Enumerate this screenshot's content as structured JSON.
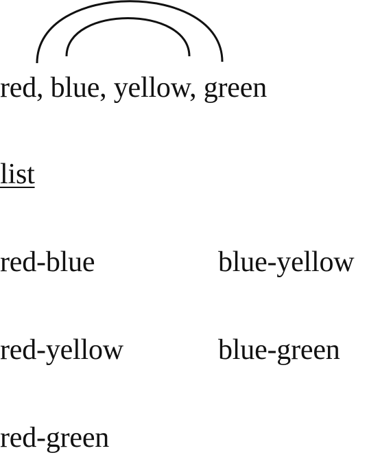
{
  "colors_line": "red, blue, yellow, green",
  "list_heading": "list",
  "pairs": [
    "red-blue",
    "blue-yellow",
    "red-yellow",
    "blue-green",
    "red-green"
  ],
  "arcs": [
    {
      "from": "red",
      "to": "green"
    },
    {
      "from": "blue",
      "to": "yellow"
    }
  ],
  "colors": {
    "ink": "#111111",
    "background": "#ffffff"
  }
}
